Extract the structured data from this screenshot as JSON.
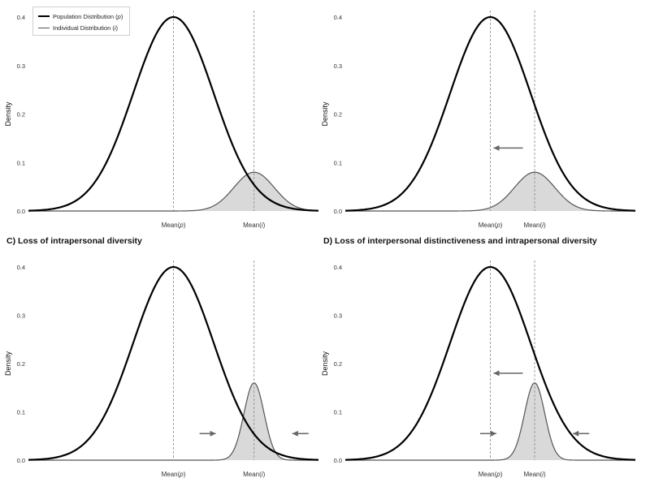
{
  "chart_data": [
    {
      "type": "line",
      "panel_title": "",
      "ylabel": "Density",
      "ylim": [
        0,
        0.4
      ],
      "yticks": [
        "0.0",
        "0.1",
        "0.2",
        "0.3",
        "0.4"
      ],
      "x_markers": [
        "Mean(p)",
        "Mean(i)"
      ],
      "legend": {
        "placement": "top-left",
        "entries": [
          "Population Distribution (p)",
          "Individual Distribution (i)"
        ]
      },
      "series": [
        {
          "name": "Population Distribution (p)",
          "mean": 0,
          "sd": 1,
          "peak": 0.4
        },
        {
          "name": "Individual Distribution (i)",
          "mean": 2,
          "sd": 0.5,
          "peak": 0.08,
          "filled": true
        }
      ],
      "arrows": []
    },
    {
      "type": "line",
      "panel_title": "",
      "ylabel": "Density",
      "ylim": [
        0,
        0.4
      ],
      "yticks": [
        "0.0",
        "0.1",
        "0.2",
        "0.3",
        "0.4"
      ],
      "x_markers": [
        "Mean(p)",
        "Mean(i)"
      ],
      "series": [
        {
          "name": "Population Distribution (p)",
          "mean": 0,
          "sd": 1,
          "peak": 0.4
        },
        {
          "name": "Individual Distribution (i)",
          "mean": 1.1,
          "sd": 0.5,
          "peak": 0.08,
          "filled": true
        }
      ],
      "arrows": [
        {
          "direction": "left",
          "y": 0.13
        }
      ]
    },
    {
      "type": "line",
      "panel_title": "C) Loss of intrapersonal diversity",
      "ylabel": "Density",
      "ylim": [
        0,
        0.4
      ],
      "yticks": [
        "0.0",
        "0.1",
        "0.2",
        "0.3",
        "0.4"
      ],
      "x_markers": [
        "Mean(p)",
        "Mean(i)"
      ],
      "series": [
        {
          "name": "Population Distribution (p)",
          "mean": 0,
          "sd": 1,
          "peak": 0.4
        },
        {
          "name": "Individual Distribution (i)",
          "mean": 2,
          "sd": 0.25,
          "peak": 0.16,
          "filled": true
        }
      ],
      "arrows": [
        {
          "direction": "inward",
          "y": 0.055
        }
      ]
    },
    {
      "type": "line",
      "panel_title": "D) Loss of interpersonal distinctiveness and intrapersonal diversity",
      "ylabel": "Density",
      "ylim": [
        0,
        0.4
      ],
      "yticks": [
        "0.0",
        "0.1",
        "0.2",
        "0.3",
        "0.4"
      ],
      "x_markers": [
        "Mean(p)",
        "Mean(i)"
      ],
      "series": [
        {
          "name": "Population Distribution (p)",
          "mean": 0,
          "sd": 1,
          "peak": 0.4
        },
        {
          "name": "Individual Distribution (i)",
          "mean": 1.1,
          "sd": 0.25,
          "peak": 0.16,
          "filled": true
        }
      ],
      "arrows": [
        {
          "direction": "left",
          "y": 0.18
        },
        {
          "direction": "inward",
          "y": 0.055
        }
      ]
    }
  ],
  "legend_labels": {
    "pop_prefix": "Population Distribution (",
    "pop_symbol": "p",
    "ind_prefix": "Individual Distribution (",
    "ind_symbol": "i",
    "suffix": ")"
  },
  "colors": {
    "population_line": "#000000",
    "individual_line": "#555555",
    "individual_fill": "#d9d9d9",
    "dashed_marker": "#888888",
    "arrow": "#666666",
    "axis_text": "#333333"
  }
}
